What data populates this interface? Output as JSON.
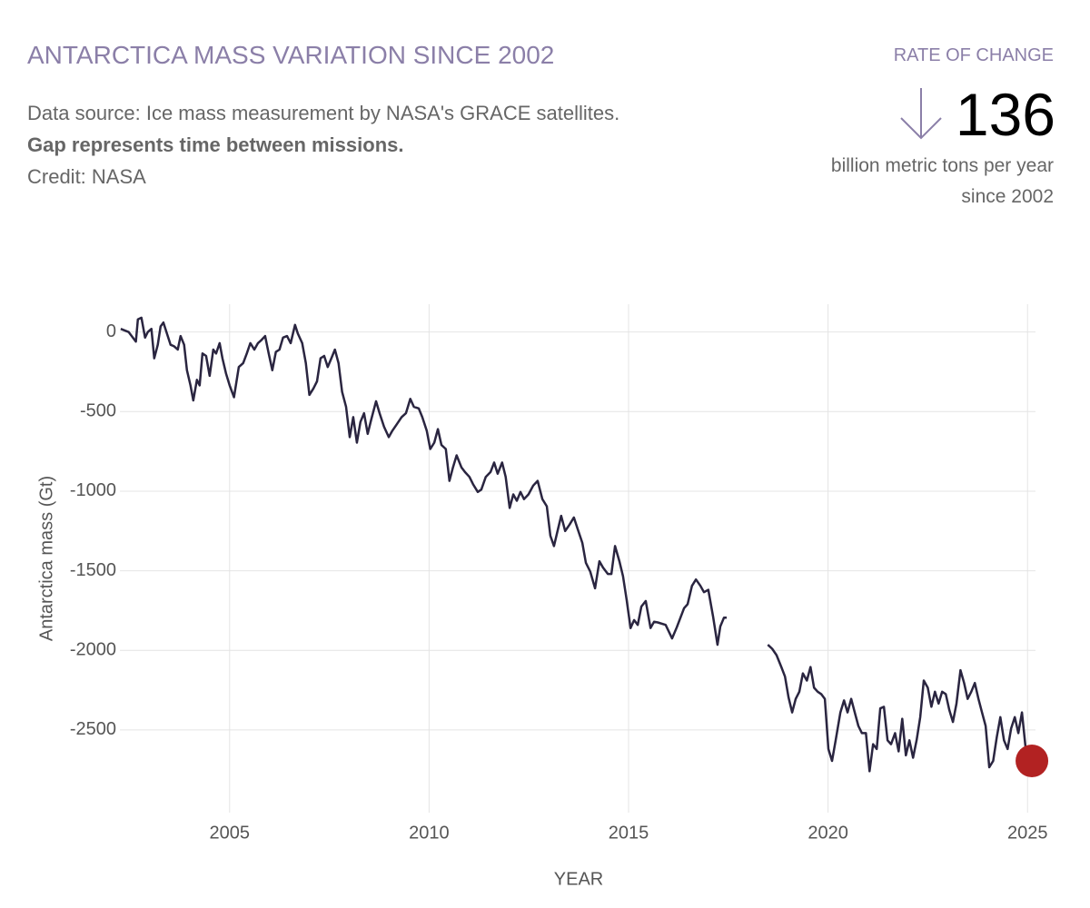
{
  "chart_data": {
    "type": "line",
    "title": "ANTARCTICA MASS VARIATION SINCE 2002",
    "subtitle": [
      "Data source: Ice mass measurement by NASA's GRACE satellites.",
      "Gap represents time between missions.",
      "Credit: NASA"
    ],
    "rate_label": "RATE OF CHANGE",
    "rate_value": 136,
    "rate_unit": "billion metric tons per year since 2002",
    "ylabel": "Antarctica mass (Gt)",
    "xlabel": "YEAR",
    "color": "#2a2540",
    "marker_color": "#b22222",
    "grid": true,
    "xlim": [
      2002.25,
      2025.2
    ],
    "ylim": [
      -3020,
      175
    ],
    "xticks": [
      2005,
      2010,
      2015,
      2020,
      2025
    ],
    "yticks": [
      0,
      -500,
      -1000,
      -1500,
      -2000,
      -2500
    ],
    "x": [
      2002.27,
      2002.47,
      2002.65,
      2002.7,
      2002.79,
      2002.88,
      2002.95,
      2003.04,
      2003.11,
      2003.2,
      2003.27,
      2003.34,
      2003.43,
      2003.52,
      2003.61,
      2003.7,
      2003.77,
      2003.86,
      2003.93,
      2004.02,
      2004.09,
      2004.18,
      2004.25,
      2004.32,
      2004.41,
      2004.5,
      2004.59,
      2004.66,
      2004.75,
      2004.82,
      2004.91,
      2005.0,
      2005.11,
      2005.23,
      2005.34,
      2005.43,
      2005.52,
      2005.62,
      2005.71,
      2005.8,
      2005.89,
      2005.98,
      2006.07,
      2006.16,
      2006.25,
      2006.34,
      2006.44,
      2006.53,
      2006.64,
      2006.71,
      2006.82,
      2006.91,
      2007.0,
      2007.1,
      2007.19,
      2007.28,
      2007.37,
      2007.46,
      2007.55,
      2007.64,
      2007.73,
      2007.82,
      2007.92,
      2008.01,
      2008.1,
      2008.19,
      2008.28,
      2008.37,
      2008.46,
      2008.55,
      2008.67,
      2008.76,
      2008.87,
      2008.99,
      2009.08,
      2009.19,
      2009.31,
      2009.42,
      2009.53,
      2009.62,
      2009.74,
      2009.83,
      2009.94,
      2010.03,
      2010.13,
      2010.22,
      2010.31,
      2010.42,
      2010.51,
      2010.6,
      2010.69,
      2010.81,
      2010.9,
      2011.01,
      2011.1,
      2011.22,
      2011.31,
      2011.42,
      2011.54,
      2011.63,
      2011.72,
      2011.83,
      2011.92,
      2012.02,
      2012.11,
      2012.2,
      2012.29,
      2012.38,
      2012.49,
      2012.61,
      2012.72,
      2012.84,
      2012.95,
      2013.04,
      2013.13,
      2013.22,
      2013.31,
      2013.41,
      2013.52,
      2013.63,
      2013.72,
      2013.84,
      2013.93,
      2014.04,
      2014.16,
      2014.27,
      2014.36,
      2014.48,
      2014.57,
      2014.66,
      2014.77,
      2014.86,
      2014.95,
      2015.05,
      2015.14,
      2015.23,
      2015.32,
      2015.43,
      2015.55,
      2015.64,
      2015.73,
      2015.93,
      2016.09,
      2016.21,
      2016.3,
      2016.39,
      2016.48,
      2016.59,
      2016.69,
      2016.8,
      2016.89,
      2017.0,
      2017.12,
      2017.23,
      2017.3,
      2017.39,
      2017.46,
      2017.9,
      2018.49,
      2018.6,
      2018.71,
      2018.83,
      2018.92,
      2019.01,
      2019.1,
      2019.19,
      2019.28,
      2019.37,
      2019.47,
      2019.56,
      2019.65,
      2019.74,
      2019.83,
      2019.92,
      2020.01,
      2020.1,
      2020.19,
      2020.31,
      2020.4,
      2020.49,
      2020.58,
      2020.67,
      2020.76,
      2020.85,
      2020.95,
      2021.04,
      2021.13,
      2021.22,
      2021.31,
      2021.4,
      2021.49,
      2021.58,
      2021.68,
      2021.77,
      2021.86,
      2021.95,
      2022.04,
      2022.13,
      2022.22,
      2022.31,
      2022.4,
      2022.5,
      2022.59,
      2022.68,
      2022.77,
      2022.86,
      2022.95,
      2023.04,
      2023.13,
      2023.22,
      2023.32,
      2023.41,
      2023.5,
      2023.59,
      2023.68,
      2023.77,
      2023.86,
      2023.95,
      2024.04,
      2024.14,
      2024.23,
      2024.32,
      2024.41,
      2024.5,
      2024.59,
      2024.68,
      2024.77,
      2024.86,
      2024.96,
      2025.11
    ],
    "values": [
      20,
      0,
      -60,
      80,
      90,
      -35,
      0,
      20,
      -165,
      -80,
      35,
      60,
      -10,
      -80,
      -90,
      -110,
      -25,
      -80,
      -240,
      -335,
      -430,
      -300,
      -335,
      -135,
      -150,
      -275,
      -110,
      -135,
      -70,
      -165,
      -260,
      -335,
      -410,
      -220,
      -195,
      -135,
      -70,
      -110,
      -70,
      -50,
      -25,
      -135,
      -240,
      -125,
      -110,
      -35,
      -25,
      -70,
      45,
      -10,
      -70,
      -195,
      -395,
      -355,
      -310,
      -165,
      -150,
      -220,
      -165,
      -110,
      -195,
      -375,
      -470,
      -660,
      -535,
      -695,
      -565,
      -510,
      -640,
      -550,
      -435,
      -510,
      -595,
      -660,
      -620,
      -580,
      -535,
      -510,
      -420,
      -470,
      -480,
      -535,
      -620,
      -735,
      -695,
      -610,
      -710,
      -735,
      -935,
      -850,
      -775,
      -850,
      -880,
      -910,
      -955,
      -1005,
      -990,
      -910,
      -880,
      -820,
      -890,
      -820,
      -910,
      -1105,
      -1020,
      -1060,
      -1005,
      -1050,
      -1020,
      -965,
      -935,
      -1050,
      -1095,
      -1280,
      -1345,
      -1250,
      -1155,
      -1250,
      -1210,
      -1165,
      -1235,
      -1325,
      -1450,
      -1505,
      -1610,
      -1440,
      -1480,
      -1520,
      -1520,
      -1345,
      -1440,
      -1535,
      -1680,
      -1860,
      -1810,
      -1840,
      -1725,
      -1690,
      -1860,
      -1820,
      -1825,
      -1840,
      -1925,
      -1855,
      -1795,
      -1735,
      -1710,
      -1595,
      -1555,
      -1595,
      -1635,
      -1620,
      -1790,
      -1965,
      -1850,
      -1795,
      -1795,
      null,
      -1965,
      -1990,
      -2030,
      -2105,
      -2165,
      -2295,
      -2390,
      -2305,
      -2260,
      -2145,
      -2190,
      -2105,
      -2235,
      -2260,
      -2275,
      -2305,
      -2620,
      -2695,
      -2565,
      -2390,
      -2315,
      -2390,
      -2305,
      -2390,
      -2475,
      -2520,
      -2520,
      -2760,
      -2590,
      -2620,
      -2365,
      -2355,
      -2565,
      -2590,
      -2520,
      -2635,
      -2430,
      -2660,
      -2565,
      -2675,
      -2565,
      -2420,
      -2190,
      -2235,
      -2355,
      -2260,
      -2335,
      -2260,
      -2275,
      -2375,
      -2450,
      -2335,
      -2125,
      -2205,
      -2305,
      -2260,
      -2205,
      -2305,
      -2390,
      -2475,
      -2735,
      -2695,
      -2545,
      -2420,
      -2565,
      -2620,
      -2490,
      -2420,
      -2520,
      -2390,
      -2635,
      -2695
    ]
  }
}
